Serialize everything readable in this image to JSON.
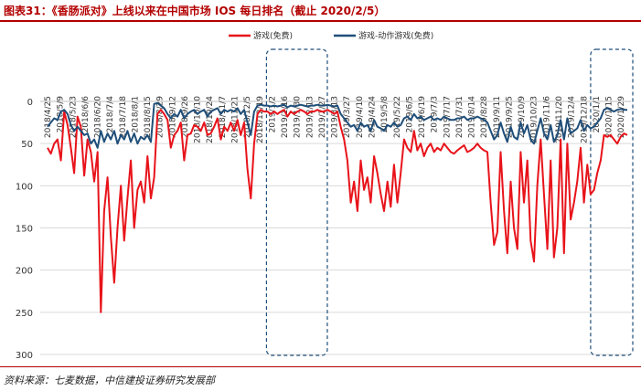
{
  "header": {
    "title": "图表31：《香肠派对》上线以来在中国市场 IOS 每日排名（截止 2020/2/5）"
  },
  "footer": {
    "source": "资料来源：七麦数据，中信建投证券研究发展部"
  },
  "chart_data": {
    "type": "line",
    "title": "",
    "xlabel": "",
    "ylabel": "",
    "ylim": [
      0,
      300
    ],
    "y_inverted": true,
    "yticks": [
      0,
      50,
      100,
      150,
      200,
      250,
      300
    ],
    "legend_position": "top-center",
    "grid": "horizontal",
    "xticks": [
      "2018/4/25",
      "2018/5/9",
      "2018/5/23",
      "2018/6/6",
      "2018/6/20",
      "2018/7/4",
      "2018/7/18",
      "2018/8/1",
      "2018/8/15",
      "2018/8/29",
      "2018/9/12",
      "2018/9/26",
      "2018/10/10",
      "2018/10/24",
      "2018/11/7",
      "2018/11/21",
      "2018/12/5",
      "2018/12/19",
      "2019/1/2",
      "2019/1/16",
      "2019/1/30",
      "2019/2/13",
      "2019/2/27",
      "2019/3/13",
      "2019/3/27",
      "2019/4/10",
      "2019/4/24",
      "2019/5/8",
      "2019/5/22",
      "2019/6/5",
      "2019/6/19",
      "2019/7/3",
      "2019/7/17",
      "2019/7/31",
      "2019/8/14",
      "2019/8/28",
      "2019/9/11",
      "2019/9/25",
      "2019/10/9",
      "2019/10/23",
      "2019/11/6",
      "2019/11/20",
      "2019/12/4",
      "2019/12/18",
      "2020/1/1",
      "2020/1/15",
      "2020/1/29"
    ],
    "series": [
      {
        "name": "游戏(免费)",
        "color": "#e8131a",
        "values": [
          55,
          62,
          50,
          45,
          70,
          12,
          28,
          55,
          85,
          18,
          30,
          88,
          45,
          60,
          95,
          60,
          250,
          130,
          90,
          160,
          215,
          150,
          100,
          165,
          115,
          70,
          150,
          105,
          95,
          120,
          65,
          115,
          90,
          15,
          10,
          15,
          22,
          55,
          40,
          35,
          25,
          70,
          40,
          38,
          28,
          30,
          35,
          25,
          40,
          38,
          30,
          20,
          45,
          30,
          35,
          25,
          35,
          22,
          40,
          25,
          80,
          115,
          50,
          15,
          10,
          12,
          12,
          15,
          12,
          15,
          12,
          10,
          18,
          12,
          15,
          12,
          10,
          12,
          15,
          12,
          12,
          10,
          12,
          12,
          10,
          12,
          15,
          12,
          30,
          45,
          70,
          120,
          95,
          130,
          70,
          105,
          90,
          120,
          65,
          85,
          110,
          130,
          95,
          125,
          75,
          120,
          85,
          45,
          55,
          60,
          35,
          58,
          50,
          65,
          55,
          50,
          60,
          55,
          58,
          50,
          55,
          60,
          62,
          58,
          55,
          52,
          60,
          58,
          55,
          50,
          55,
          58,
          60,
          120,
          170,
          155,
          60,
          130,
          180,
          95,
          150,
          175,
          60,
          120,
          70,
          165,
          190,
          100,
          45,
          110,
          175,
          70,
          185,
          150,
          45,
          180,
          50,
          140,
          120,
          95,
          55,
          120,
          75,
          110,
          105,
          85,
          70,
          40,
          42,
          40,
          45,
          50,
          42,
          38,
          40
        ],
        "note": "values sampled roughly evenly from 2018/4/25 to 2020/2/5"
      },
      {
        "name": "游戏-动作游戏(免费)",
        "color": "#1f4e79",
        "values": [
          30,
          25,
          20,
          22,
          12,
          10,
          15,
          28,
          35,
          30,
          35,
          40,
          38,
          50,
          45,
          55,
          35,
          48,
          38,
          45,
          35,
          50,
          40,
          45,
          35,
          48,
          38,
          50,
          42,
          45,
          40,
          48,
          3,
          2,
          5,
          8,
          15,
          20,
          15,
          18,
          10,
          20,
          15,
          12,
          10,
          15,
          12,
          10,
          18,
          12,
          10,
          8,
          15,
          10,
          12,
          10,
          12,
          8,
          15,
          10,
          25,
          40,
          12,
          5,
          4,
          5,
          5,
          6,
          5,
          6,
          5,
          4,
          7,
          5,
          6,
          5,
          4,
          5,
          6,
          5,
          5,
          4,
          5,
          5,
          4,
          5,
          6,
          5,
          15,
          20,
          25,
          30,
          28,
          35,
          25,
          30,
          28,
          35,
          22,
          30,
          32,
          35,
          28,
          30,
          25,
          30,
          28,
          20,
          18,
          22,
          15,
          20,
          18,
          22,
          20,
          18,
          22,
          20,
          22,
          18,
          20,
          22,
          22,
          20,
          20,
          18,
          22,
          20,
          20,
          18,
          20,
          22,
          25,
          35,
          45,
          40,
          25,
          38,
          48,
          30,
          42,
          45,
          25,
          38,
          28,
          45,
          50,
          35,
          20,
          38,
          45,
          28,
          48,
          40,
          22,
          45,
          20,
          38,
          35,
          32,
          22,
          35,
          28,
          32,
          30,
          25,
          20,
          10,
          8,
          10,
          12,
          10,
          9,
          10,
          10
        ]
      }
    ],
    "highlight_periods": [
      {
        "start": "2019/1/2",
        "end": "2019/2/27"
      },
      {
        "start": "2020/1/1",
        "end": "2020/2/5"
      }
    ]
  }
}
